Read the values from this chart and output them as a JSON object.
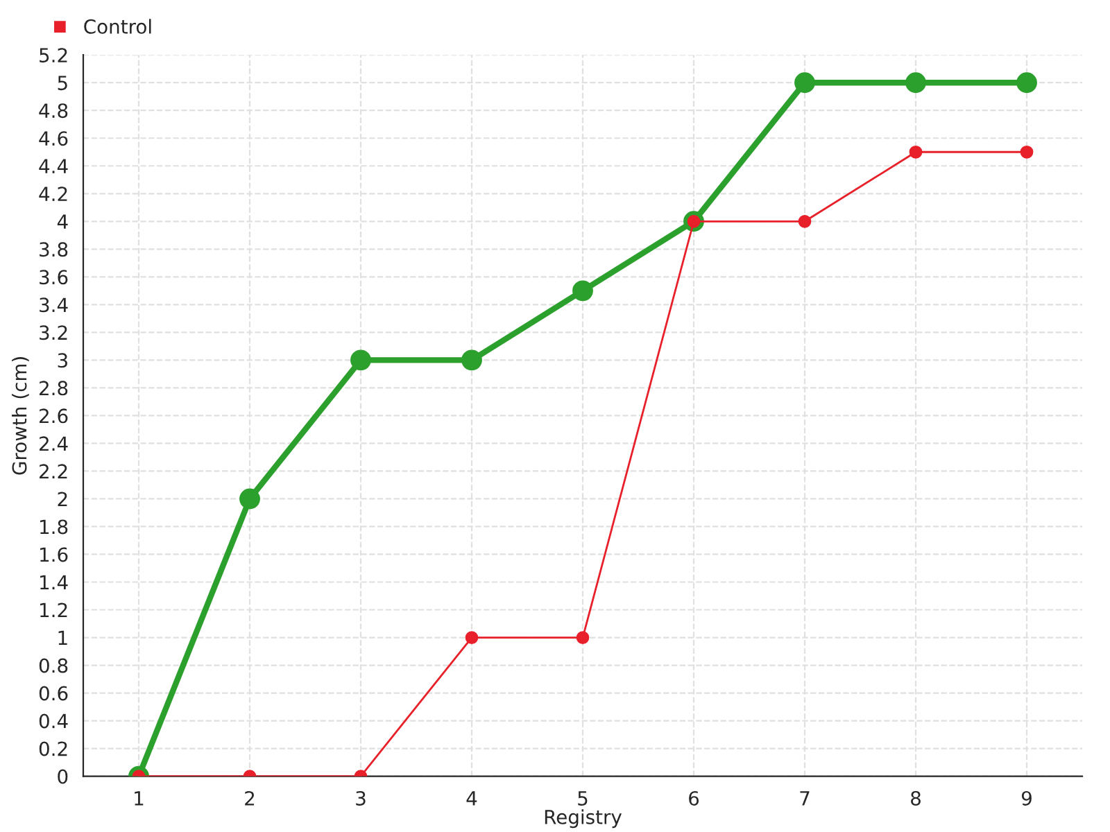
{
  "chart_data": {
    "type": "line",
    "xlabel": "Registry",
    "ylabel": "Growth (cm)",
    "categories": [
      "1",
      "2",
      "3",
      "4",
      "5",
      "6",
      "7",
      "8",
      "9"
    ],
    "series": [
      {
        "color": "#2ca02c",
        "values": [
          0,
          2,
          3,
          3,
          3.5,
          4,
          5,
          5,
          5
        ]
      },
      {
        "name": "Control",
        "color": "#e8202a",
        "values": [
          0,
          0,
          0,
          1,
          1,
          4,
          4,
          4.5,
          4.5
        ]
      }
    ],
    "ylim": [
      0,
      5.2
    ],
    "yticks": [
      0,
      0.2,
      0.4,
      0.6,
      0.8,
      1,
      1.2,
      1.4,
      1.6,
      1.8,
      2,
      2.2,
      2.4,
      2.6,
      2.8,
      3,
      3.2,
      3.4,
      3.6,
      3.8,
      4,
      4.2,
      4.4,
      4.6,
      4.8,
      5,
      5.2
    ],
    "grid": true,
    "legend": "top left",
    "marker": "circle"
  }
}
